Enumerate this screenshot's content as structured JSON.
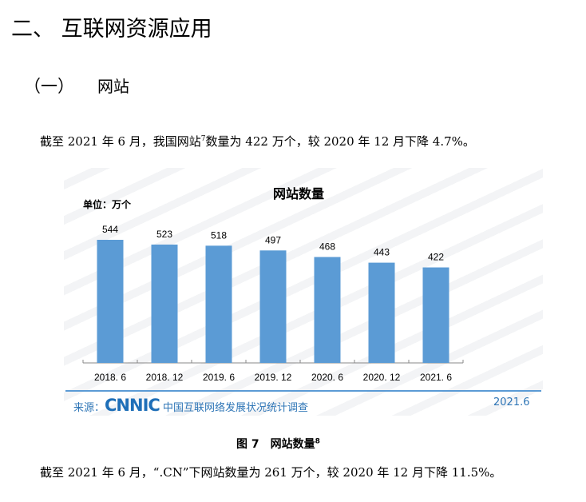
{
  "heading": "二、 互联网资源应用",
  "subheading": {
    "number": "（一）",
    "title": "网站"
  },
  "para1": {
    "text": "截至 2021 年 6 月，我国网站",
    "footnote": "7",
    "text2": "数量为 422 万个，较 2020 年 12 月下降 4.7%。"
  },
  "chart_data": {
    "type": "bar",
    "title": "网站数量",
    "unit_label": "单位：万个",
    "categories": [
      "2018. 6",
      "2018. 12",
      "2019. 6",
      "2019. 12",
      "2020. 6",
      "2020. 12",
      "2021. 6"
    ],
    "values": [
      544,
      523,
      518,
      497,
      468,
      443,
      422
    ],
    "ylim": [
      0,
      600
    ],
    "xlabel": "",
    "ylabel": "",
    "grid": false,
    "bar_color": "#5b9bd5",
    "source_label": "来源：",
    "source_logo": "CNNIC",
    "source_name": "中国互联网络发展状况统计调查",
    "source_date": "2021.6",
    "watermark": "CNNIC"
  },
  "caption": {
    "text": "图 7　网站数量",
    "footnote": "8"
  },
  "para2": "截至 2021 年 6 月，“.CN”下网站数量为 261 万个，较 2020 年 12 月下降 11.5%。"
}
